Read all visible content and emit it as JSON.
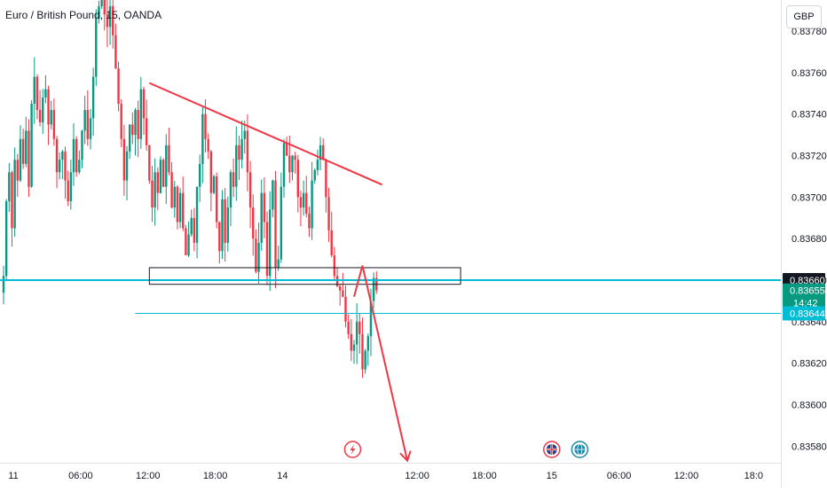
{
  "header": {
    "symbol_title": "Euro / British Pound, 15, OANDA",
    "currency_button": "GBP"
  },
  "chart_data": {
    "type": "candlestick",
    "title": "Euro / British Pound, 15, OANDA",
    "ylim": [
      0.83572,
      0.83795
    ],
    "y_ticks": [
      0.8358,
      0.836,
      0.8362,
      0.8364,
      0.8366,
      0.8368,
      0.837,
      0.8372,
      0.8374,
      0.8376,
      0.8378
    ],
    "y_tick_labels": [
      "0.83580",
      "0.83600",
      "0.83620",
      "0.83640",
      "0.83660",
      "0.83680",
      "0.83700",
      "0.83720",
      "0.83740",
      "0.83760",
      "0.83780"
    ],
    "x_ticks": [
      {
        "label": "11",
        "bar": 3.5
      },
      {
        "label": "06:00",
        "bar": 27.5
      },
      {
        "label": "12:00",
        "bar": 51.5
      },
      {
        "label": "18:00",
        "bar": 75.5
      },
      {
        "label": "14",
        "bar": 99.5
      },
      {
        "label": "12:00",
        "bar": 147.5
      },
      {
        "label": "18:00",
        "bar": 171.5
      },
      {
        "label": "15",
        "bar": 195.5
      },
      {
        "label": "06:00",
        "bar": 219.5
      },
      {
        "label": "12:00",
        "bar": 243.5
      },
      {
        "label": "18:0",
        "bar": 267.5
      }
    ],
    "bar_count": 268,
    "up_color": "#089981",
    "down_color": "#f23645",
    "close": [
      0.83662,
      0.83698,
      0.83712,
      0.83685,
      0.83718,
      0.83708,
      0.83728,
      0.83716,
      0.83732,
      0.83705,
      0.83745,
      0.83758,
      0.83742,
      0.83736,
      0.83748,
      0.83752,
      0.83735,
      0.83742,
      0.83728,
      0.83712,
      0.83718,
      0.83722,
      0.83708,
      0.83698,
      0.83712,
      0.83728,
      0.83712,
      0.83718,
      0.83732,
      0.83742,
      0.83728,
      0.83738,
      0.83758,
      0.83786,
      0.83792,
      0.83795,
      0.83788,
      0.83782,
      0.83792,
      0.83778,
      0.83762,
      0.83745,
      0.83728,
      0.83708,
      0.83722,
      0.83735,
      0.8373,
      0.83742,
      0.83728,
      0.83752,
      0.83738,
      0.83725,
      0.83708,
      0.83695,
      0.83712,
      0.83702,
      0.83718,
      0.83705,
      0.83725,
      0.83712,
      0.83695,
      0.83705,
      0.83688,
      0.83702,
      0.83685,
      0.83672,
      0.83682,
      0.8369,
      0.83678,
      0.83705,
      0.83716,
      0.8374,
      0.83728,
      0.83722,
      0.83702,
      0.8371,
      0.83688,
      0.83674,
      0.83699,
      0.83678,
      0.83695,
      0.83712,
      0.83705,
      0.83725,
      0.83718,
      0.83728,
      0.83732,
      0.83712,
      0.83695,
      0.8368,
      0.83664,
      0.83678,
      0.83702,
      0.83688,
      0.83662,
      0.83694,
      0.83708,
      0.83666,
      0.8367,
      0.83705,
      0.83726,
      0.8372,
      0.83712,
      0.8372,
      0.83718,
      0.837,
      0.83695,
      0.83702,
      0.83692,
      0.83685,
      0.83708,
      0.83713,
      0.83718,
      0.83725,
      0.83718,
      0.837,
      0.83684,
      0.83672,
      0.83662,
      0.83657,
      0.83655,
      0.83652,
      0.8364,
      0.83634,
      0.83626,
      0.83629,
      0.8364,
      0.83634,
      0.83617,
      0.83626,
      0.83633,
      0.8365,
      0.83661,
      0.83655
    ],
    "series_note": "",
    "trendline": {
      "color": "#f23645",
      "from": {
        "bar": 52,
        "price": 0.83755
      },
      "to": {
        "bar": 135,
        "price": 0.83706
      }
    },
    "zone": {
      "border": "#131722",
      "from_bar": 52,
      "to_bar": 163,
      "top": 0.83666,
      "bottom": 0.83658
    },
    "hlines": [
      {
        "price": 0.8366,
        "color": "#00bcd4"
      },
      {
        "price": 0.83644,
        "color": "#00bcd4",
        "from_bar": 47
      }
    ],
    "projection": {
      "color": "#f23645",
      "points": [
        {
          "bar": 125,
          "price": 0.83652
        },
        {
          "bar": 128,
          "price": 0.83667
        },
        {
          "bar": 144,
          "price": 0.83573
        }
      ]
    },
    "price_badges": [
      {
        "price": 0.8366,
        "label": "0.83660",
        "bg": "#131722"
      },
      {
        "price": 0.83655,
        "label": "0.83655",
        "sub": "14:42",
        "bg": "#089981"
      },
      {
        "price": 0.83644,
        "label": "0.83644",
        "bg": "#00bcd4"
      }
    ],
    "event_icons": [
      {
        "name": "lightning-event-icon",
        "bar": 124.5,
        "color": "#f23645"
      },
      {
        "name": "uk-flag-event-icon",
        "bar": 195.5,
        "color": "#f23645"
      },
      {
        "name": "globe-event-icon",
        "bar": 205.5,
        "color": "#1e88a8"
      }
    ]
  }
}
